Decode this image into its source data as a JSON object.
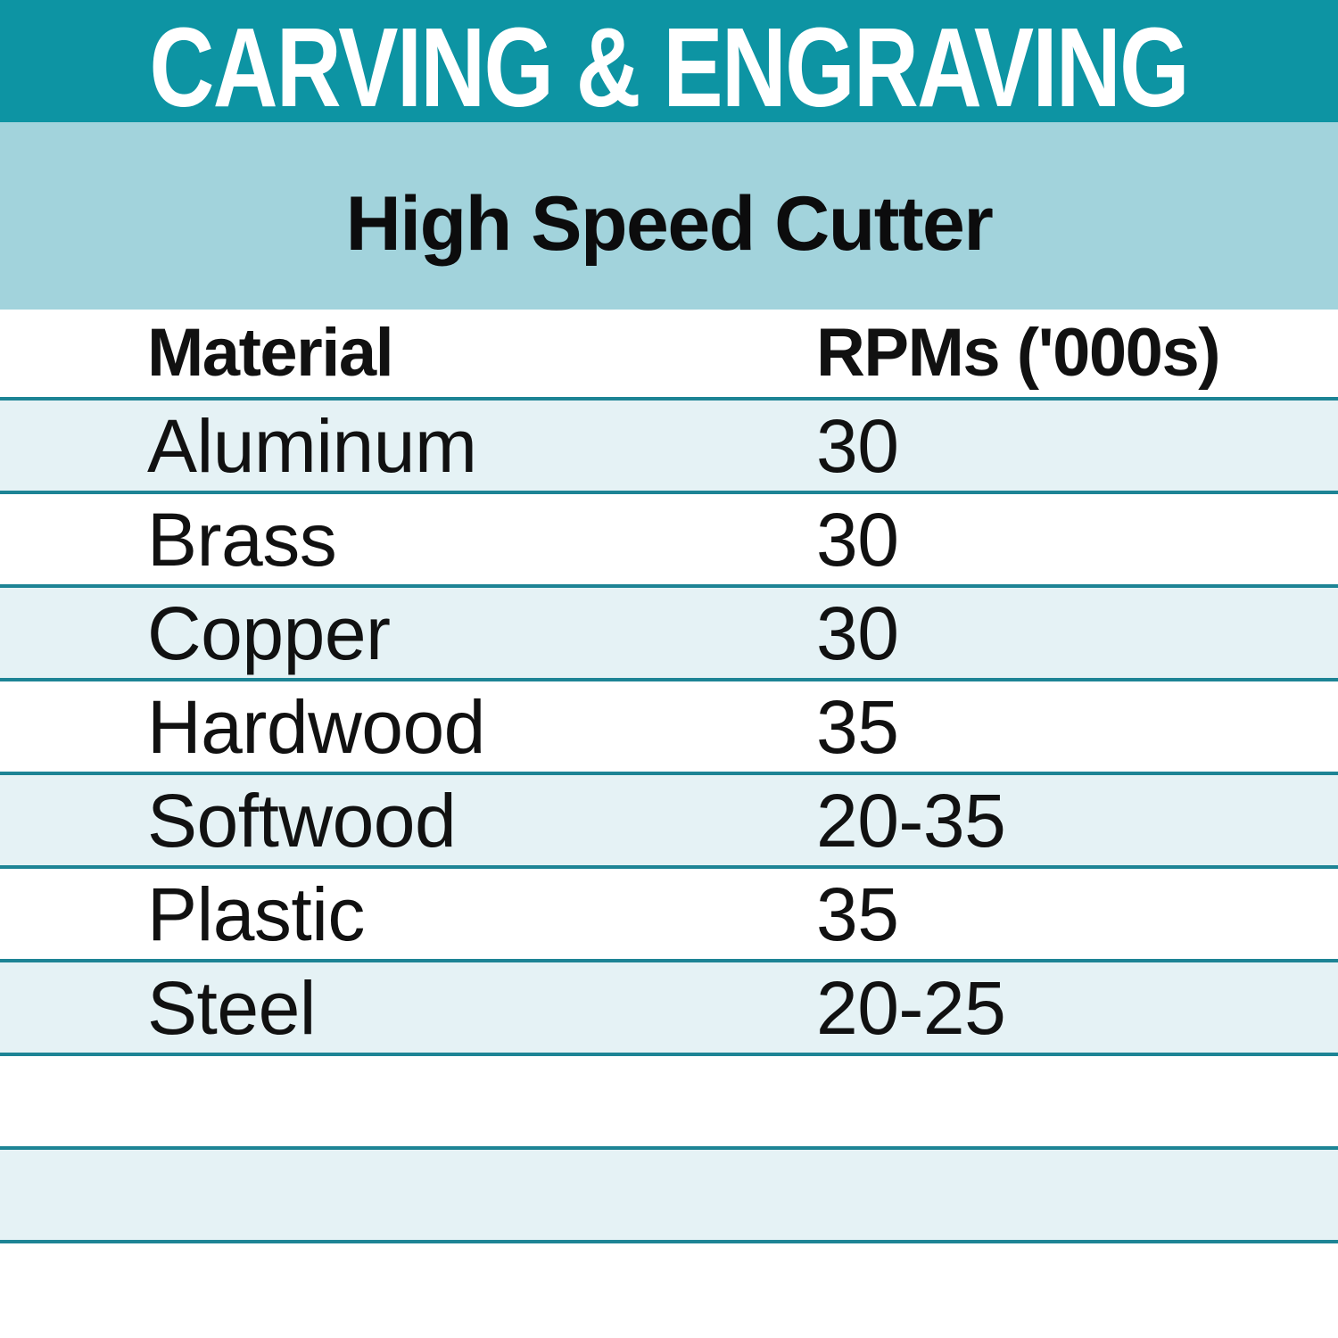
{
  "title": "CARVING & ENGRAVING",
  "subtitle": "High Speed Cutter",
  "table": {
    "headers": [
      "Material",
      "RPMs ('000s)"
    ],
    "rows": [
      {
        "material": "Aluminum",
        "rpm": "30"
      },
      {
        "material": "Brass",
        "rpm": "30"
      },
      {
        "material": "Copper",
        "rpm": "30"
      },
      {
        "material": "Hardwood",
        "rpm": "35"
      },
      {
        "material": "Softwood",
        "rpm": "20-35"
      },
      {
        "material": "Plastic",
        "rpm": "35"
      },
      {
        "material": "Steel",
        "rpm": "20-25"
      }
    ],
    "empty_row_count": 3
  },
  "colors": {
    "title_band": "#0d94a3",
    "subtitle_band": "#a2d3dc",
    "row_pale": "#e5f2f5",
    "row_white": "#ffffff",
    "divider_line": "#1d8495",
    "title_text": "#ffffff",
    "body_text": "#111111"
  },
  "chart_data": {
    "type": "table",
    "title": "CARVING & ENGRAVING",
    "subtitle": "High Speed Cutter",
    "columns": [
      "Material",
      "RPMs ('000s)"
    ],
    "rows": [
      [
        "Aluminum",
        "30"
      ],
      [
        "Brass",
        "30"
      ],
      [
        "Copper",
        "30"
      ],
      [
        "Hardwood",
        "35"
      ],
      [
        "Softwood",
        "20-35"
      ],
      [
        "Plastic",
        "35"
      ],
      [
        "Steel",
        "20-25"
      ]
    ],
    "notes": "RPM values are in thousands; alternating pale-blue and white rows with teal divider lines; three empty rows at bottom"
  }
}
